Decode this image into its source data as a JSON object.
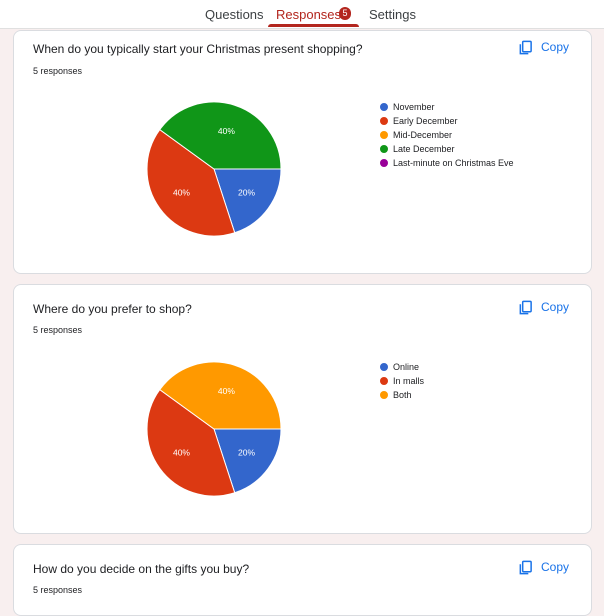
{
  "tabs": {
    "questions": "Questions",
    "responses": "Responses",
    "responses_badge": "5",
    "settings": "Settings"
  },
  "colors": {
    "accent": "#b3261e",
    "link": "#1a73e8"
  },
  "cards": [
    {
      "question": "When do you typically start your Christmas present shopping?",
      "responses": "5 responses",
      "copy_label": "Copy",
      "copy_icon": "copy-icon"
    },
    {
      "question": "Where do you prefer to shop?",
      "responses": "5 responses",
      "copy_label": "Copy",
      "copy_icon": "copy-icon"
    },
    {
      "question": "How do you decide on the gifts you buy?",
      "responses": "5 responses",
      "copy_label": "Copy",
      "copy_icon": "copy-icon"
    }
  ],
  "chart_data": [
    {
      "type": "pie",
      "labels": [
        "November",
        "Early December",
        "Mid-December",
        "Late December",
        "Last-minute on Christmas Eve"
      ],
      "values": [
        20,
        40,
        0,
        40,
        0
      ],
      "data_labels": [
        "20%",
        "40%",
        "",
        "40%",
        ""
      ],
      "colors": [
        "#3366cc",
        "#dc3912",
        "#ff9900",
        "#109618",
        "#990099"
      ],
      "legend_position": "right"
    },
    {
      "type": "pie",
      "labels": [
        "Online",
        "In malls",
        "Both"
      ],
      "values": [
        20,
        40,
        40
      ],
      "data_labels": [
        "20%",
        "40%",
        "40%"
      ],
      "colors": [
        "#3366cc",
        "#dc3912",
        "#ff9900"
      ],
      "legend_position": "right"
    }
  ]
}
